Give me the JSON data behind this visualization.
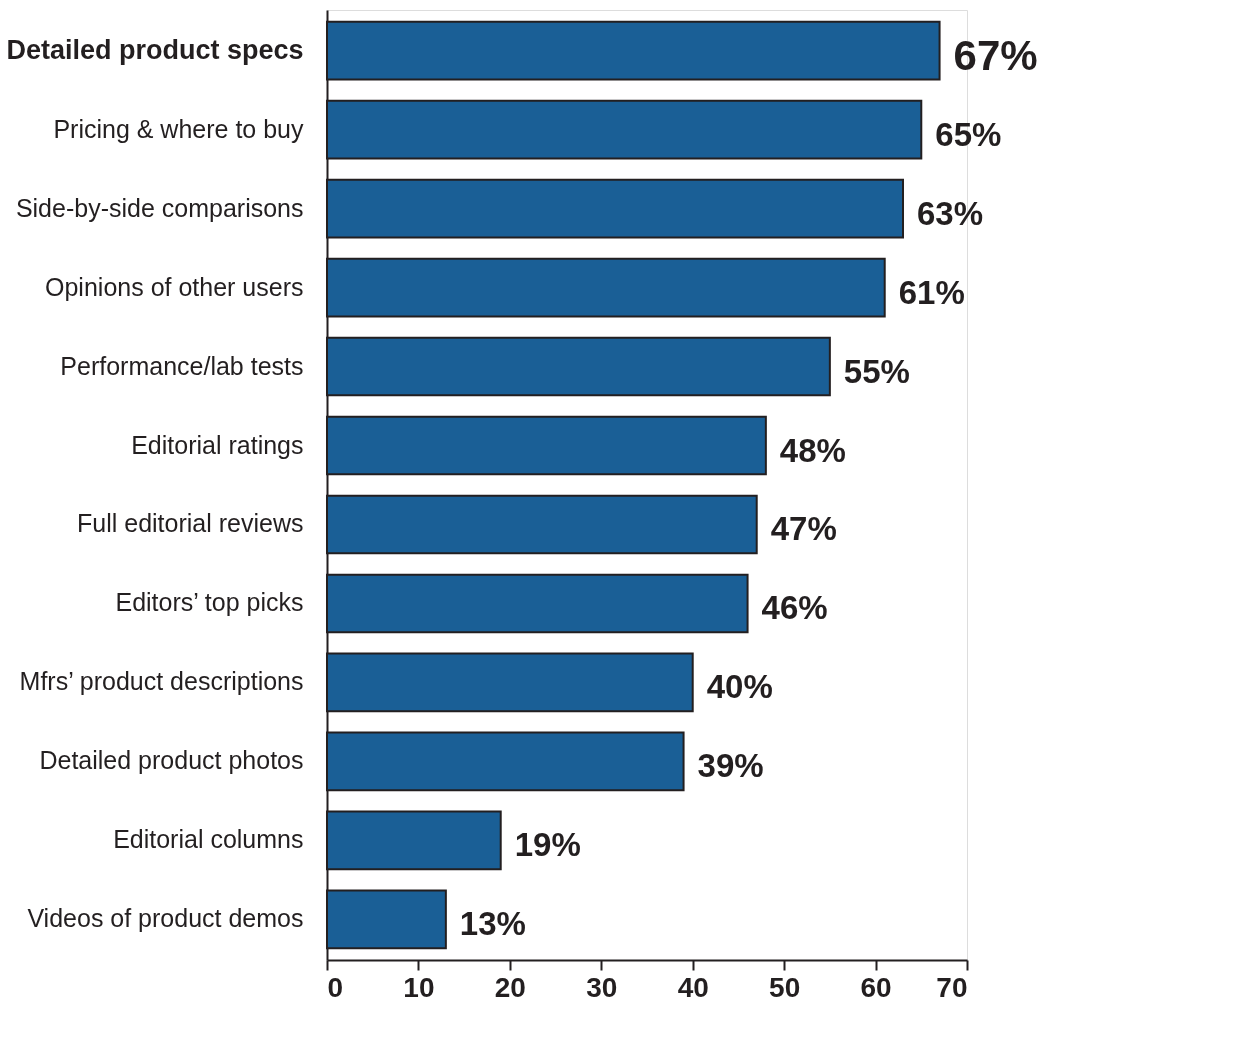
{
  "chart_data": {
    "type": "bar",
    "orientation": "horizontal",
    "categories": [
      "Detailed product specs",
      "Pricing & where to buy",
      "Side-by-side comparisons",
      "Opinions of other users",
      "Performance/lab tests",
      "Editorial ratings",
      "Full editorial reviews",
      "Editors’ top picks",
      "Mfrs’ product descriptions",
      "Detailed product photos",
      "Editorial columns",
      "Videos of product demos"
    ],
    "values": [
      67,
      65,
      63,
      61,
      55,
      48,
      47,
      46,
      40,
      39,
      19,
      13
    ],
    "value_labels": [
      "67%",
      "65%",
      "63%",
      "61%",
      "55%",
      "48%",
      "47%",
      "46%",
      "40%",
      "39%",
      "19%",
      "13%"
    ],
    "color": "#1a5f96",
    "xlim": [
      0,
      70
    ],
    "xticks": [
      0,
      10,
      20,
      30,
      40,
      50,
      60,
      70
    ],
    "grid": false
  }
}
